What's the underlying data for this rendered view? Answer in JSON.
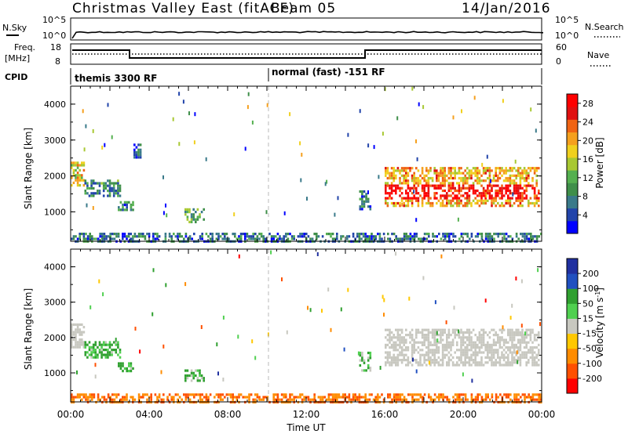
{
  "title": {
    "station": "Christmas Valley East (fitACF)",
    "beam": "Beam 05",
    "date": "14/Jan/2016"
  },
  "strip_labels": {
    "nsky": "N.Sky",
    "nsky_ticks": [
      "10^5",
      "10^0"
    ],
    "nsearch": "N.Search",
    "nsearch_ticks": [
      "10^5",
      "10^0"
    ],
    "freq": "Freq.",
    "freq_unit": "[MHz]",
    "freq_ticks": [
      "18",
      "8"
    ],
    "nave": "Nave",
    "nave_ticks": [
      "60",
      "0"
    ],
    "cpid": "CPID"
  },
  "cpid_modes": [
    {
      "label": "themis 3300 RF",
      "start_hour": 0
    },
    {
      "label": "normal (fast) -151 RF",
      "start_hour": 10
    }
  ],
  "colors": {
    "power": [
      "#0000ff",
      "#2244aa",
      "#3a7a8a",
      "#3f8f4a",
      "#55b050",
      "#a8c832",
      "#f0d01e",
      "#f5a01e",
      "#f06414",
      "#e01010",
      "#ff0000"
    ],
    "velocity": [
      "#ff0000",
      "#ff5000",
      "#ff8c00",
      "#ffc800",
      "#c8c8c0",
      "#50d050",
      "#30a030",
      "#2050c0",
      "#2030a0"
    ]
  },
  "chart_data": [
    {
      "type": "heatmap",
      "panel": "power",
      "xlabel": "",
      "ylabel": "Slant Range [km]",
      "xlim": [
        0,
        24
      ],
      "ylim": [
        180,
        4500
      ],
      "y_ticks": [
        "4000",
        "3000",
        "2000",
        "1000"
      ],
      "colorbar": {
        "label": "Power [dB]",
        "range": [
          0,
          30
        ],
        "ticks": [
          "28",
          "24",
          "20",
          "16",
          "12",
          "8",
          "4"
        ]
      },
      "echo_regions": [
        {
          "hours": [
            0.0,
            0.7
          ],
          "range_km": [
            1750,
            2400
          ],
          "value_db": 18
        },
        {
          "hours": [
            0.7,
            2.5
          ],
          "range_km": [
            1450,
            1900
          ],
          "value_db": 8
        },
        {
          "hours": [
            2.4,
            3.2
          ],
          "range_km": [
            1050,
            1300
          ],
          "value_db": 7
        },
        {
          "hours": [
            3.2,
            3.6
          ],
          "range_km": [
            2550,
            2900
          ],
          "value_db": 5
        },
        {
          "hours": [
            5.8,
            6.8
          ],
          "range_km": [
            750,
            1100
          ],
          "value_db": 10
        },
        {
          "hours": [
            0.0,
            24.0
          ],
          "range_km": [
            180,
            420
          ],
          "value_db": 6
        },
        {
          "hours": [
            14.7,
            15.3
          ],
          "range_km": [
            1050,
            1600
          ],
          "value_db": 6
        },
        {
          "hours": [
            16.0,
            23.9
          ],
          "range_km": [
            1200,
            2250
          ],
          "value_db": 20
        }
      ]
    },
    {
      "type": "heatmap",
      "panel": "velocity",
      "xlabel": "Time UT",
      "ylabel": "Slant Range [km]",
      "xlim": [
        0,
        24
      ],
      "ylim": [
        180,
        4500
      ],
      "x_ticks": [
        "00:00",
        "04:00",
        "08:00",
        "12:00",
        "16:00",
        "20:00",
        "00:00"
      ],
      "y_ticks": [
        "4000",
        "3000",
        "2000",
        "1000"
      ],
      "colorbar": {
        "label": "Velocity [m s^-1]",
        "range": [
          -250,
          250
        ],
        "ticks": [
          "200",
          "100",
          "50",
          "15",
          "-15",
          "-50",
          "-100",
          "-200"
        ]
      },
      "echo_regions": [
        {
          "hours": [
            0.0,
            0.7
          ],
          "range_km": [
            1750,
            2400
          ],
          "value_ms": 0,
          "gs": true
        },
        {
          "hours": [
            0.7,
            2.5
          ],
          "range_km": [
            1450,
            1900
          ],
          "value_ms": 40
        },
        {
          "hours": [
            2.4,
            3.2
          ],
          "range_km": [
            1050,
            1300
          ],
          "value_ms": 40
        },
        {
          "hours": [
            5.8,
            6.8
          ],
          "range_km": [
            750,
            1100
          ],
          "value_ms": 40
        },
        {
          "hours": [
            0.0,
            24.0
          ],
          "range_km": [
            180,
            420
          ],
          "value_ms": -70
        },
        {
          "hours": [
            14.7,
            15.3
          ],
          "range_km": [
            1050,
            1600
          ],
          "value_ms": 20
        },
        {
          "hours": [
            16.0,
            23.9
          ],
          "range_km": [
            1200,
            2250
          ],
          "value_ms": 0,
          "gs": true
        }
      ]
    }
  ]
}
